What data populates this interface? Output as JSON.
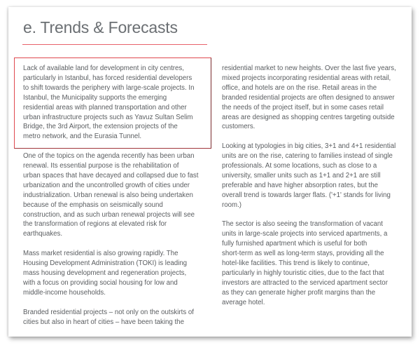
{
  "title": "e. Trends & Forecasts",
  "colors": {
    "accent": "#e8636b",
    "highlight_border": "#e0484f",
    "text": "#5a5d60"
  },
  "left_column": [
    [
      "Lack of available land for development in city centres,",
      "particularly in Istanbul, has forced residential developers",
      "to shift towards the periphery with large-scale projects. In",
      "Istanbul, the Municipality supports the emerging",
      "residential areas with planned transportation and other",
      "urban infrastructure projects such as Yavuz Sultan Selim",
      "Bridge, the 3rd Airport, the extension projects of the",
      "metro network, and the Eurasia Tunnel."
    ],
    [
      "One of the topics on the agenda recently has been urban",
      "renewal. Its essential purpose is the rehabilitation of",
      "urban spaces that have decayed and collapsed due to fast",
      "urbanization and the uncontrolled growth of cities under",
      "industrialization. Urban renewal is also being undertaken",
      "because of the emphasis on seismically sound",
      "construction, and as such urban renewal projects will see",
      "the transformation of regions at elevated risk for",
      "earthquakes."
    ],
    [
      "Mass market residential is also growing rapidly. The",
      "Housing Development Administration (TOKI) is leading",
      "mass housing development and regeneration projects,",
      "with a focus on providing social housing for low and",
      "middle-income households."
    ],
    [
      "Branded residential projects – not only on the outskirts of",
      "cities but also in heart of cities – have been taking the"
    ]
  ],
  "right_column": [
    [
      "residential market to new heights. Over the last five years,",
      "mixed projects incorporating residential areas with retail,",
      "office, and hotels are on the rise. Retail areas in the",
      "branded residential projects are often designed to answer",
      "the needs of the project itself, but in some cases retail",
      "areas are designed as shopping centres targeting outside",
      "customers."
    ],
    [
      "Looking at typologies in big cities, 3+1 and 4+1 residential",
      "units are on the rise, catering to families instead of single",
      "professionals. At some locations, such as close to a",
      "university, smaller units such as 1+1 and 2+1 are still",
      "preferable and have higher absorption rates, but the",
      "overall trend is towards larger flats. ('+1' stands for living",
      "room.)"
    ],
    [
      "The sector is also seeing the transformation of vacant",
      "units in large-scale projects into serviced apartments, a",
      "fully furnished apartment which is useful for both",
      "short-term as well as long-term stays, providing all the",
      "hotel-like facilities. This trend is likely to continue,",
      "particularly in highly touristic cities, due to the fact that",
      "investors are attracted to the serviced apartment sector",
      "as they can generate higher profit margins than the",
      "average hotel."
    ]
  ]
}
